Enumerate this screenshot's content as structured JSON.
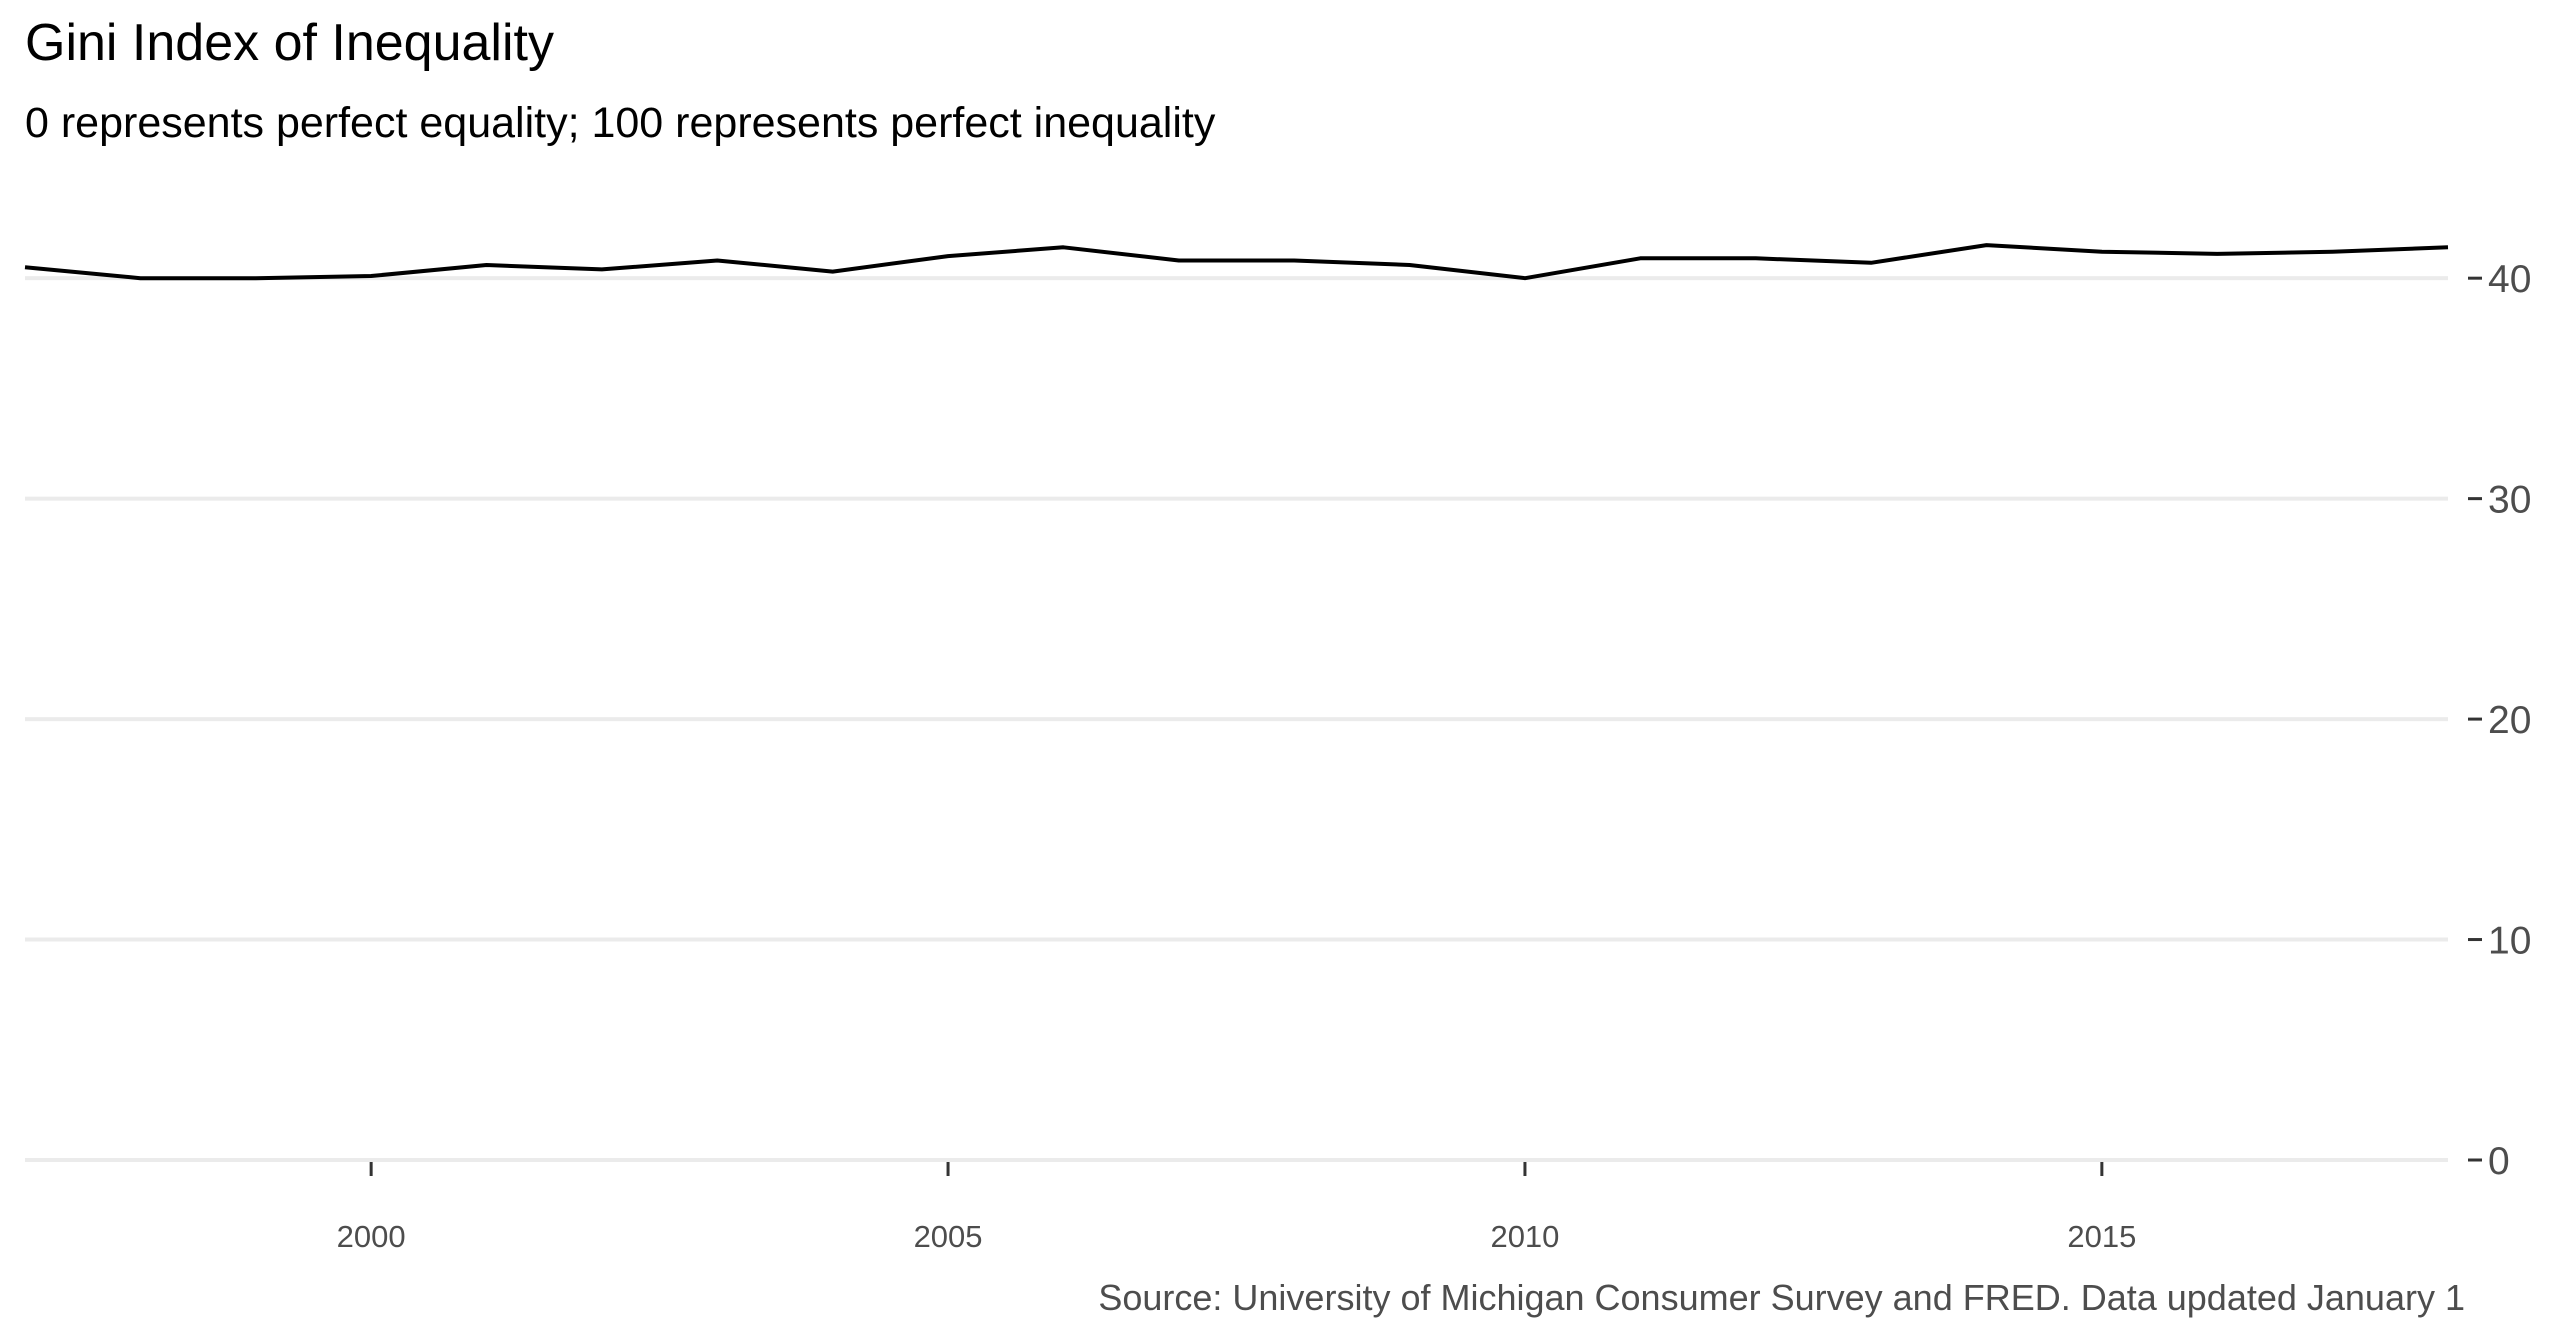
{
  "chart_data": {
    "type": "line",
    "title": "Gini Index of Inequality",
    "subtitle": "0 represents perfect equality; 100 represents perfect inequality",
    "caption": "Source: University of Michigan Consumer Survey and FRED. Data updated January 1",
    "xlabel": "",
    "ylabel": "",
    "xlim": [
      1997,
      2018
    ],
    "ylim": [
      0,
      44
    ],
    "x_ticks": [
      2000,
      2005,
      2010,
      2015
    ],
    "y_ticks": [
      0,
      10,
      20,
      30,
      40
    ],
    "y_axis_position": "right",
    "grid": "horizontal",
    "legend": "none",
    "series": [
      {
        "x": [
          1997,
          1998,
          1999,
          2000,
          2001,
          2002,
          2003,
          2004,
          2005,
          2006,
          2007,
          2008,
          2009,
          2010,
          2011,
          2012,
          2013,
          2014,
          2015,
          2016,
          2017,
          2018
        ],
        "values": [
          40.5,
          40.0,
          40.0,
          40.1,
          40.6,
          40.4,
          40.8,
          40.3,
          41.0,
          41.4,
          40.8,
          40.8,
          40.6,
          40.0,
          40.9,
          40.9,
          40.7,
          41.5,
          41.2,
          41.1,
          41.2,
          41.4
        ]
      }
    ],
    "colors": {
      "line": "#000000",
      "grid": "#ebebeb",
      "tick_text": "#4d4d4d",
      "caption": "#4d4d4d"
    }
  }
}
